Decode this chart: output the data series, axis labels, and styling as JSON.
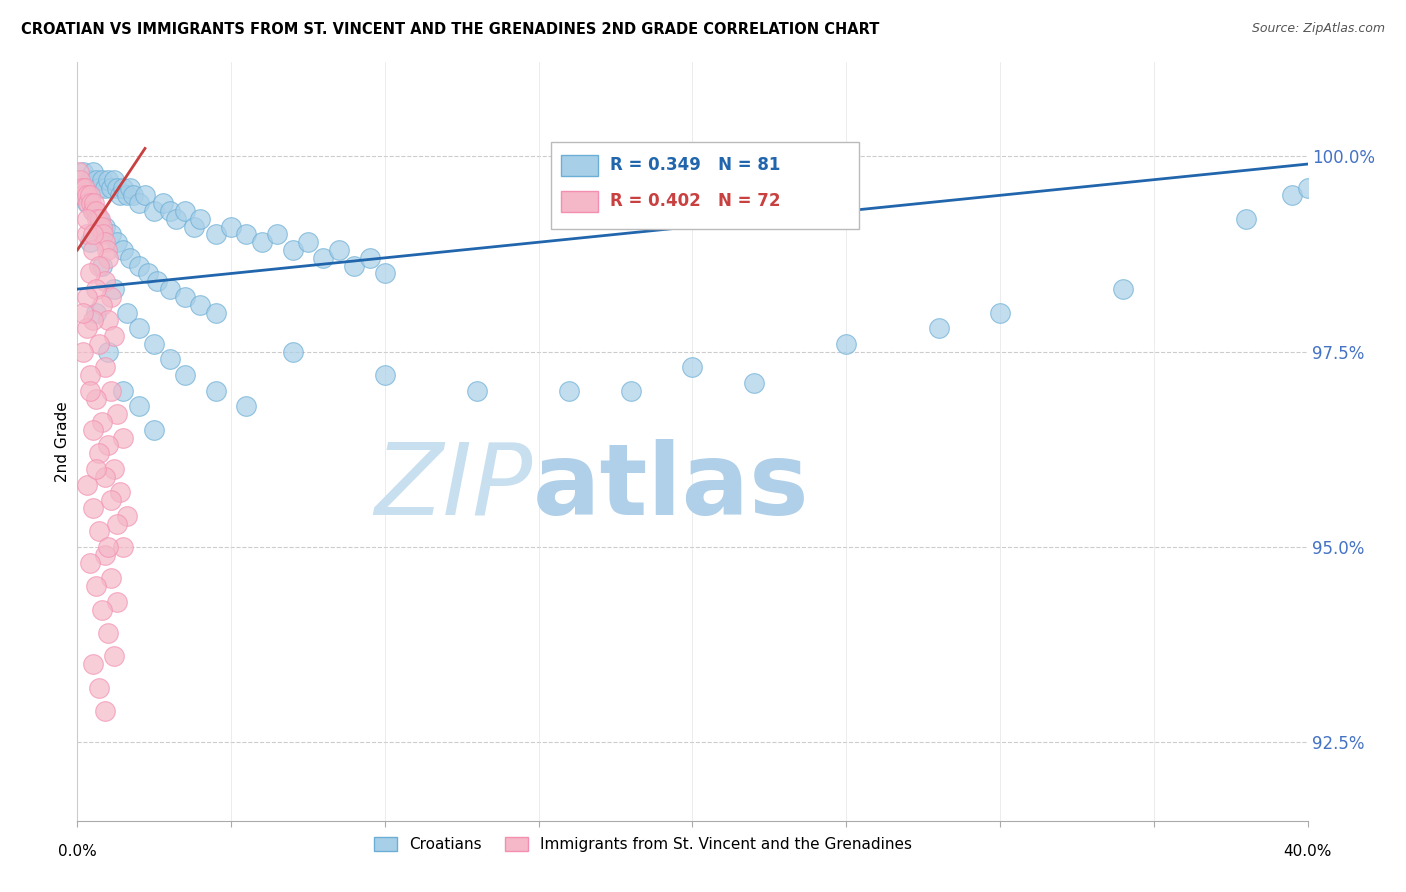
{
  "title": "CROATIAN VS IMMIGRANTS FROM ST. VINCENT AND THE GRENADINES 2ND GRADE CORRELATION CHART",
  "source": "Source: ZipAtlas.com",
  "ylabel": "2nd Grade",
  "xmin": 0.0,
  "xmax": 40.0,
  "ymin": 91.5,
  "ymax": 101.2,
  "yticks": [
    92.5,
    95.0,
    97.5,
    100.0
  ],
  "ytick_labels": [
    "92.5%",
    "95.0%",
    "97.5%",
    "100.0%"
  ],
  "legend_blue_label": "Croatians",
  "legend_pink_label": "Immigrants from St. Vincent and the Grenadines",
  "R_blue": 0.349,
  "N_blue": 81,
  "R_pink": 0.402,
  "N_pink": 72,
  "blue_color": "#a8cfe8",
  "pink_color": "#f4b8c8",
  "blue_edge_color": "#6baed6",
  "pink_edge_color": "#f48fb1",
  "blue_line_color": "#2166ac",
  "pink_line_color": "#c94040",
  "watermark_zip": "ZIP",
  "watermark_atlas": "atlas",
  "watermark_color": "#c8dff0",
  "blue_dots": [
    [
      0.2,
      99.8
    ],
    [
      0.4,
      99.7
    ],
    [
      0.5,
      99.8
    ],
    [
      0.6,
      99.7
    ],
    [
      0.7,
      99.6
    ],
    [
      0.8,
      99.7
    ],
    [
      0.9,
      99.6
    ],
    [
      1.0,
      99.7
    ],
    [
      1.1,
      99.6
    ],
    [
      1.2,
      99.7
    ],
    [
      1.3,
      99.6
    ],
    [
      1.4,
      99.5
    ],
    [
      1.5,
      99.6
    ],
    [
      1.6,
      99.5
    ],
    [
      1.7,
      99.6
    ],
    [
      1.8,
      99.5
    ],
    [
      2.0,
      99.4
    ],
    [
      2.2,
      99.5
    ],
    [
      2.5,
      99.3
    ],
    [
      2.8,
      99.4
    ],
    [
      3.0,
      99.3
    ],
    [
      3.2,
      99.2
    ],
    [
      3.5,
      99.3
    ],
    [
      3.8,
      99.1
    ],
    [
      4.0,
      99.2
    ],
    [
      4.5,
      99.0
    ],
    [
      5.0,
      99.1
    ],
    [
      5.5,
      99.0
    ],
    [
      6.0,
      98.9
    ],
    [
      6.5,
      99.0
    ],
    [
      7.0,
      98.8
    ],
    [
      7.5,
      98.9
    ],
    [
      8.0,
      98.7
    ],
    [
      8.5,
      98.8
    ],
    [
      9.0,
      98.6
    ],
    [
      9.5,
      98.7
    ],
    [
      10.0,
      98.5
    ],
    [
      0.3,
      99.4
    ],
    [
      0.5,
      99.3
    ],
    [
      0.7,
      99.2
    ],
    [
      0.9,
      99.1
    ],
    [
      1.1,
      99.0
    ],
    [
      1.3,
      98.9
    ],
    [
      1.5,
      98.8
    ],
    [
      1.7,
      98.7
    ],
    [
      2.0,
      98.6
    ],
    [
      2.3,
      98.5
    ],
    [
      2.6,
      98.4
    ],
    [
      3.0,
      98.3
    ],
    [
      3.5,
      98.2
    ],
    [
      4.0,
      98.1
    ],
    [
      4.5,
      98.0
    ],
    [
      0.4,
      98.9
    ],
    [
      0.8,
      98.6
    ],
    [
      1.2,
      98.3
    ],
    [
      1.6,
      98.0
    ],
    [
      2.0,
      97.8
    ],
    [
      2.5,
      97.6
    ],
    [
      3.0,
      97.4
    ],
    [
      3.5,
      97.2
    ],
    [
      4.5,
      97.0
    ],
    [
      5.5,
      96.8
    ],
    [
      0.6,
      98.0
    ],
    [
      1.0,
      97.5
    ],
    [
      1.5,
      97.0
    ],
    [
      2.0,
      96.8
    ],
    [
      2.5,
      96.5
    ],
    [
      7.0,
      97.5
    ],
    [
      10.0,
      97.2
    ],
    [
      13.0,
      97.0
    ],
    [
      16.0,
      97.0
    ],
    [
      20.0,
      97.3
    ],
    [
      25.0,
      97.6
    ],
    [
      30.0,
      98.0
    ],
    [
      34.0,
      98.3
    ],
    [
      38.0,
      99.2
    ],
    [
      39.5,
      99.5
    ],
    [
      28.0,
      97.8
    ],
    [
      22.0,
      97.1
    ],
    [
      18.0,
      97.0
    ],
    [
      40.0,
      99.6
    ]
  ],
  "pink_dots": [
    [
      0.05,
      99.8
    ],
    [
      0.1,
      99.7
    ],
    [
      0.15,
      99.6
    ],
    [
      0.2,
      99.5
    ],
    [
      0.25,
      99.6
    ],
    [
      0.3,
      99.5
    ],
    [
      0.35,
      99.4
    ],
    [
      0.4,
      99.5
    ],
    [
      0.45,
      99.4
    ],
    [
      0.5,
      99.3
    ],
    [
      0.55,
      99.4
    ],
    [
      0.6,
      99.3
    ],
    [
      0.65,
      99.2
    ],
    [
      0.7,
      99.1
    ],
    [
      0.75,
      99.2
    ],
    [
      0.8,
      99.1
    ],
    [
      0.85,
      99.0
    ],
    [
      0.9,
      98.9
    ],
    [
      0.95,
      98.8
    ],
    [
      1.0,
      98.7
    ],
    [
      0.3,
      99.0
    ],
    [
      0.5,
      98.8
    ],
    [
      0.7,
      98.6
    ],
    [
      0.9,
      98.4
    ],
    [
      1.1,
      98.2
    ],
    [
      0.4,
      98.5
    ],
    [
      0.6,
      98.3
    ],
    [
      0.8,
      98.1
    ],
    [
      1.0,
      97.9
    ],
    [
      1.2,
      97.7
    ],
    [
      0.3,
      98.2
    ],
    [
      0.5,
      97.9
    ],
    [
      0.7,
      97.6
    ],
    [
      0.9,
      97.3
    ],
    [
      1.1,
      97.0
    ],
    [
      1.3,
      96.7
    ],
    [
      1.5,
      96.4
    ],
    [
      0.2,
      97.5
    ],
    [
      0.4,
      97.2
    ],
    [
      0.6,
      96.9
    ],
    [
      0.8,
      96.6
    ],
    [
      1.0,
      96.3
    ],
    [
      1.2,
      96.0
    ],
    [
      1.4,
      95.7
    ],
    [
      1.6,
      95.4
    ],
    [
      0.5,
      96.5
    ],
    [
      0.7,
      96.2
    ],
    [
      0.9,
      95.9
    ],
    [
      1.1,
      95.6
    ],
    [
      1.3,
      95.3
    ],
    [
      1.5,
      95.0
    ],
    [
      0.3,
      95.8
    ],
    [
      0.5,
      95.5
    ],
    [
      0.7,
      95.2
    ],
    [
      0.9,
      94.9
    ],
    [
      1.1,
      94.6
    ],
    [
      1.3,
      94.3
    ],
    [
      0.4,
      94.8
    ],
    [
      0.6,
      94.5
    ],
    [
      0.8,
      94.2
    ],
    [
      1.0,
      93.9
    ],
    [
      1.2,
      93.6
    ],
    [
      0.5,
      93.5
    ],
    [
      0.7,
      93.2
    ],
    [
      0.9,
      92.9
    ],
    [
      0.3,
      97.8
    ],
    [
      0.2,
      98.0
    ],
    [
      0.4,
      97.0
    ],
    [
      0.6,
      96.0
    ],
    [
      1.0,
      95.0
    ],
    [
      0.3,
      99.2
    ],
    [
      0.5,
      99.0
    ]
  ],
  "blue_trend_x": [
    0.0,
    40.0
  ],
  "blue_trend_y": [
    98.3,
    99.9
  ],
  "pink_trend_x": [
    0.0,
    2.2
  ],
  "pink_trend_y": [
    98.8,
    100.1
  ]
}
